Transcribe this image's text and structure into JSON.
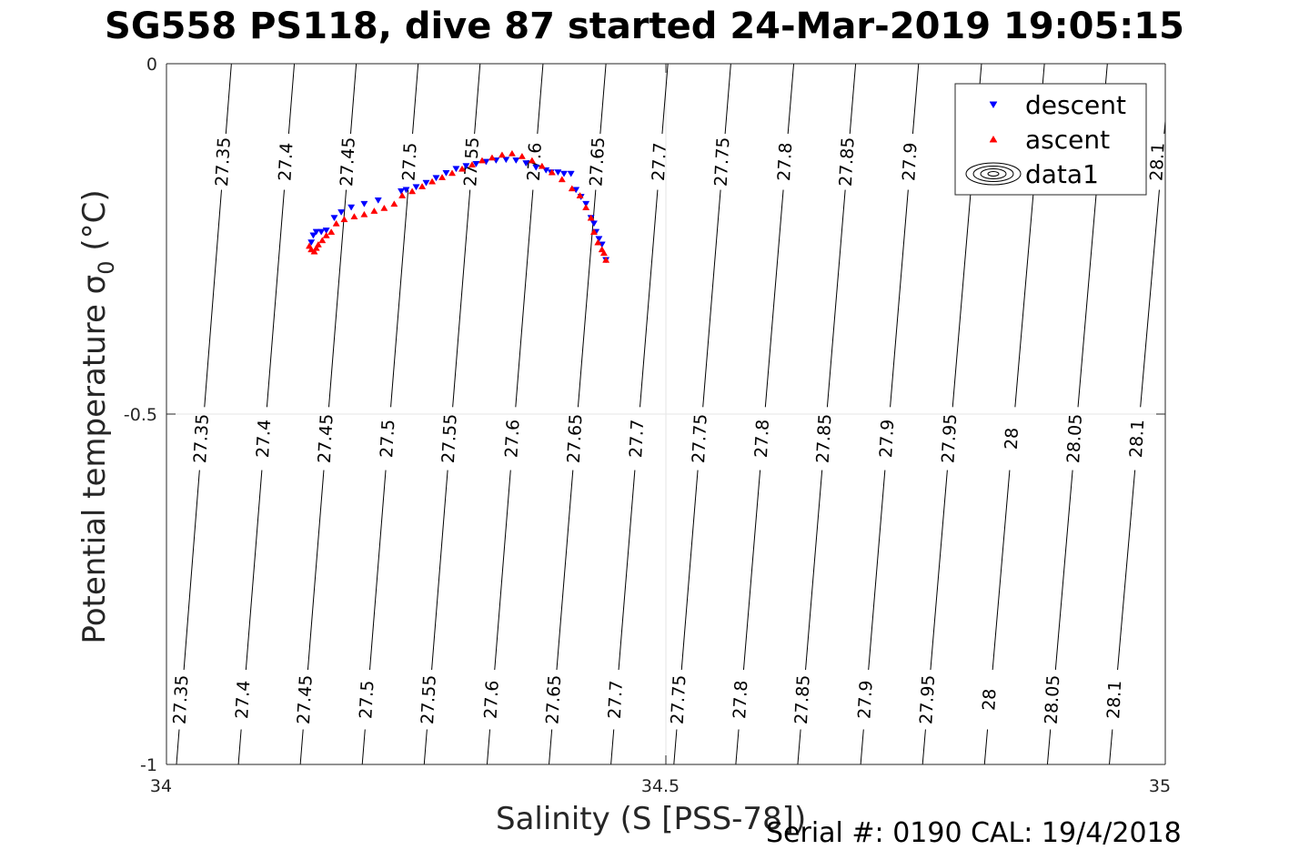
{
  "chart_data": {
    "type": "scatter",
    "title": "SG558 PS118, dive 87 started 24-Mar-2019 19:05:15",
    "xlabel": "Salinity (S [PSS-78])",
    "ylabel_main": "Potential temperature σ",
    "ylabel_sub": "0",
    "ylabel_unit": " (°C)",
    "footer": "Serial #: 0190  CAL: 19/4/2018",
    "xlim": [
      34,
      35
    ],
    "ylim": [
      -1,
      0
    ],
    "xticks": [
      34,
      34.5,
      35
    ],
    "xtick_labels": [
      "34",
      "34.5",
      "35"
    ],
    "yticks": [
      0,
      -0.5,
      -1
    ],
    "ytick_labels": [
      "0",
      "-0.5",
      "-1"
    ],
    "grid": true,
    "legend_position": "top-right",
    "legend": [
      {
        "label": "descent",
        "marker": "triangle-down",
        "color": "#0000ff"
      },
      {
        "label": "ascent",
        "marker": "triangle-up",
        "color": "#ff0000"
      },
      {
        "label": "data1",
        "marker": "contour",
        "color": "#000000"
      }
    ],
    "density_contours": {
      "levels": [
        "27.35",
        "27.4",
        "27.45",
        "27.5",
        "27.55",
        "27.6",
        "27.65",
        "27.7",
        "27.75",
        "27.8",
        "27.85",
        "27.9",
        "27.95",
        "28",
        "28.05",
        "28.1"
      ],
      "x_at_bottom": [
        34.01,
        34.072,
        34.134,
        34.196,
        34.258,
        34.321,
        34.383,
        34.445,
        34.508,
        34.57,
        34.632,
        34.695,
        34.757,
        34.819,
        34.882,
        34.944
      ],
      "x_at_top": [
        34.065,
        34.128,
        34.19,
        34.252,
        34.314,
        34.377,
        34.44,
        34.502,
        34.565,
        34.628,
        34.69,
        34.753,
        34.816,
        34.879,
        34.942,
        35.005
      ],
      "labels_row_top": [
        "27.35",
        "27.4",
        "27.45",
        "27.5",
        "27.55",
        "27.6",
        "27.65",
        "27.7",
        "27.75",
        "27.8",
        "27.85",
        "27.9",
        "28.1"
      ],
      "labels_row_mid": [
        "27.35",
        "27.4",
        "27.45",
        "27.5",
        "27.55",
        "27.6",
        "27.65",
        "27.7",
        "27.75",
        "27.8",
        "27.85",
        "27.9",
        "27.95",
        "28",
        "28.05",
        "28.1"
      ],
      "labels_row_bottom": [
        "27.35",
        "27.4",
        "27.45",
        "27.5",
        "27.55",
        "27.6",
        "27.65",
        "27.7",
        "27.75",
        "27.8",
        "27.85",
        "27.9",
        "27.95",
        "28",
        "28.05",
        "28.1"
      ]
    },
    "series": [
      {
        "name": "descent",
        "marker": "triangle-down",
        "color": "#0000ff",
        "x": [
          34.145,
          34.147,
          34.15,
          34.155,
          34.16,
          34.168,
          34.175,
          34.185,
          34.198,
          34.212,
          34.235,
          34.24,
          34.25,
          34.26,
          34.27,
          34.28,
          34.29,
          34.3,
          34.31,
          34.32,
          34.33,
          34.34,
          34.35,
          34.36,
          34.37,
          34.38,
          34.385,
          34.392,
          34.398,
          34.405,
          34.41,
          34.415,
          34.42,
          34.425,
          34.428,
          34.43,
          34.433,
          34.436,
          34.44
        ],
        "y": [
          -0.255,
          -0.245,
          -0.24,
          -0.24,
          -0.238,
          -0.22,
          -0.212,
          -0.205,
          -0.2,
          -0.195,
          -0.182,
          -0.18,
          -0.176,
          -0.17,
          -0.163,
          -0.156,
          -0.15,
          -0.146,
          -0.143,
          -0.14,
          -0.138,
          -0.137,
          -0.138,
          -0.142,
          -0.148,
          -0.152,
          -0.155,
          -0.155,
          -0.157,
          -0.157,
          -0.18,
          -0.19,
          -0.2,
          -0.22,
          -0.228,
          -0.24,
          -0.25,
          -0.258,
          -0.28
        ]
      },
      {
        "name": "ascent",
        "marker": "triangle-up",
        "color": "#ff0000",
        "x": [
          34.143,
          34.145,
          34.148,
          34.15,
          34.152,
          34.156,
          34.16,
          34.165,
          34.17,
          34.178,
          34.188,
          34.198,
          34.208,
          34.218,
          34.228,
          34.236,
          34.246,
          34.256,
          34.266,
          34.276,
          34.286,
          34.296,
          34.306,
          34.316,
          34.326,
          34.336,
          34.346,
          34.356,
          34.366,
          34.376,
          34.386,
          34.396,
          34.406,
          34.414,
          34.42,
          34.425,
          34.428,
          34.432,
          34.436,
          34.438,
          34.44
        ],
        "y": [
          -0.26,
          -0.265,
          -0.268,
          -0.263,
          -0.258,
          -0.252,
          -0.245,
          -0.24,
          -0.228,
          -0.222,
          -0.218,
          -0.215,
          -0.21,
          -0.206,
          -0.2,
          -0.188,
          -0.182,
          -0.175,
          -0.168,
          -0.162,
          -0.156,
          -0.15,
          -0.144,
          -0.138,
          -0.134,
          -0.13,
          -0.128,
          -0.132,
          -0.138,
          -0.146,
          -0.155,
          -0.165,
          -0.178,
          -0.188,
          -0.205,
          -0.22,
          -0.24,
          -0.255,
          -0.265,
          -0.27,
          -0.28
        ]
      }
    ]
  }
}
